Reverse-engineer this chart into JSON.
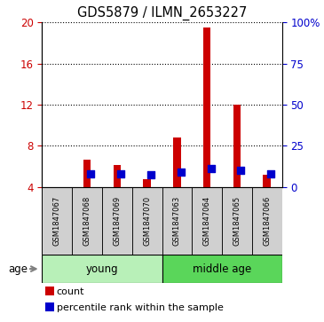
{
  "title": "GDS5879 / ILMN_2653227",
  "samples": [
    "GSM1847067",
    "GSM1847068",
    "GSM1847069",
    "GSM1847070",
    "GSM1847063",
    "GSM1847064",
    "GSM1847065",
    "GSM1847066"
  ],
  "count_values": [
    4.0,
    6.6,
    6.1,
    4.7,
    8.8,
    19.5,
    12.0,
    5.2
  ],
  "percentile_values": [
    null,
    8.05,
    7.95,
    7.55,
    8.85,
    11.3,
    10.1,
    7.85
  ],
  "ylim_left": [
    4,
    20
  ],
  "ylim_right": [
    0,
    100
  ],
  "yticks_left": [
    4,
    8,
    12,
    16,
    20
  ],
  "ytick_labels_right": [
    "0",
    "25",
    "50",
    "75",
    "100%"
  ],
  "bar_color": "#CC0000",
  "dot_color": "#0000CC",
  "bar_width": 0.25,
  "group_bar_color_young": "#b8f0b8",
  "group_bar_color_mid": "#5ad65a",
  "age_label": "age",
  "legend_count": "count",
  "legend_pct": "percentile rank within the sample",
  "background_color": "#ffffff",
  "sample_bg_color": "#d0d0d0",
  "left_tick_color": "#CC0000",
  "right_tick_color": "#0000CC"
}
